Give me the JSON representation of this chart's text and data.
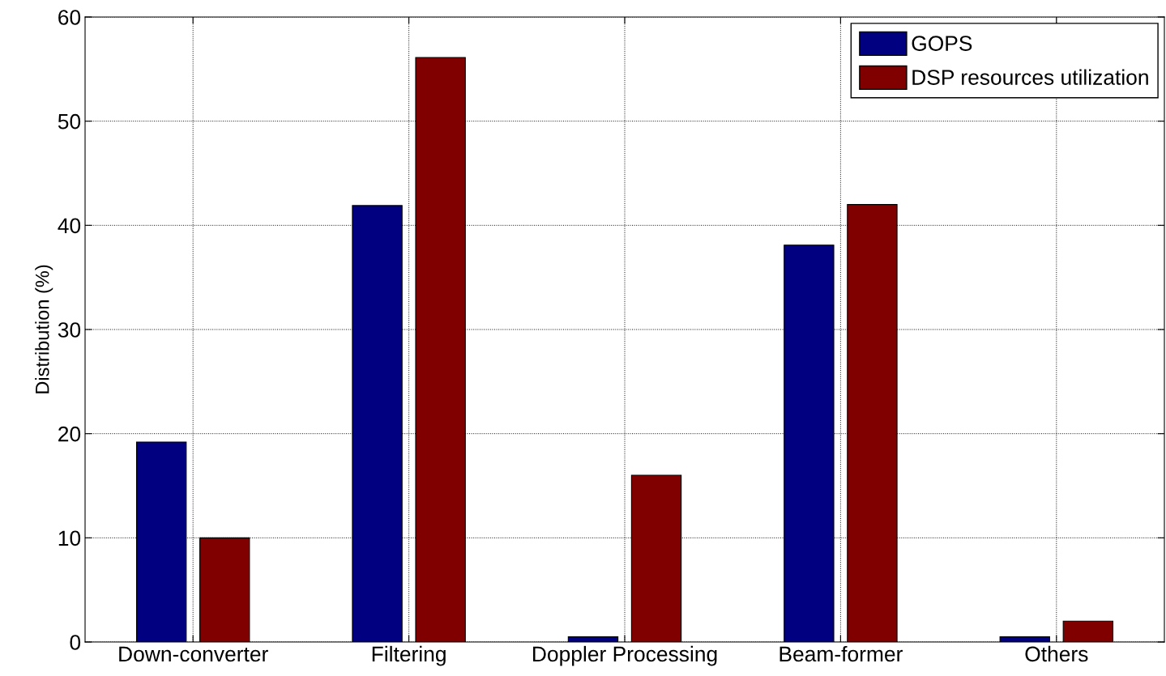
{
  "chart_data": {
    "type": "bar",
    "ylabel": "Distribution (%)",
    "categories": [
      "Down-converter",
      "Filtering",
      "Doppler Processing",
      "Beam-former",
      "Others"
    ],
    "series": [
      {
        "name": "GOPS",
        "color": "#000080",
        "values": [
          19.2,
          41.9,
          0.5,
          38.1,
          0.5
        ]
      },
      {
        "name": "DSP resources utilization",
        "color": "#800000",
        "values": [
          10.0,
          56.1,
          16.0,
          42.0,
          2.0
        ]
      }
    ],
    "ylim": [
      0,
      60
    ],
    "yticks": [
      0,
      10,
      20,
      30,
      40,
      50,
      60
    ],
    "grid": true,
    "legend": "top right"
  }
}
